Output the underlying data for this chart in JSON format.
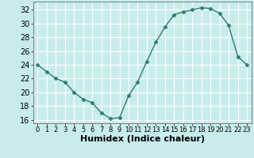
{
  "x": [
    0,
    1,
    2,
    3,
    4,
    5,
    6,
    7,
    8,
    9,
    10,
    11,
    12,
    13,
    14,
    15,
    16,
    17,
    18,
    19,
    20,
    21,
    22,
    23
  ],
  "y": [
    24,
    23,
    22,
    21.5,
    20,
    19,
    18.5,
    17,
    16.2,
    16.3,
    19.5,
    21.5,
    24.5,
    27.3,
    29.5,
    31.3,
    31.7,
    32,
    32.3,
    32.2,
    31.5,
    29.7,
    25.2,
    24
  ],
  "line_color": "#2e7d6e",
  "marker": "D",
  "marker_size": 2.5,
  "bg_color": "#c8ecec",
  "grid_color": "#ffffff",
  "xlabel": "Humidex (Indice chaleur)",
  "ylim": [
    15.5,
    33.2
  ],
  "xlim": [
    -0.5,
    23.5
  ],
  "yticks": [
    16,
    18,
    20,
    22,
    24,
    26,
    28,
    30,
    32
  ],
  "xticks": [
    0,
    1,
    2,
    3,
    4,
    5,
    6,
    7,
    8,
    9,
    10,
    11,
    12,
    13,
    14,
    15,
    16,
    17,
    18,
    19,
    20,
    21,
    22,
    23
  ],
  "tick_fontsize": 7,
  "label_fontsize": 8,
  "linewidth": 1.0
}
